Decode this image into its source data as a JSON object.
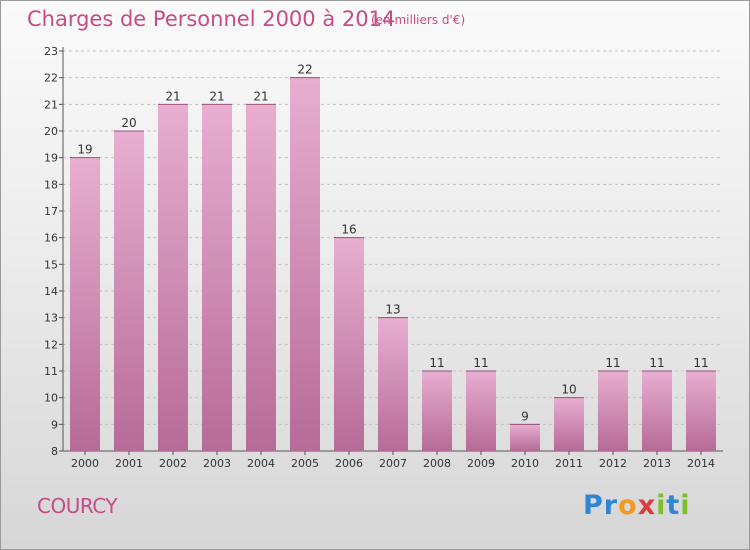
{
  "chart_data": {
    "type": "bar",
    "title": "Charges de Personnel 2000 à 2014",
    "subtitle": "(en milliers d'€)",
    "categories": [
      "2000",
      "2001",
      "2002",
      "2003",
      "2004",
      "2005",
      "2006",
      "2007",
      "2008",
      "2009",
      "2010",
      "2011",
      "2012",
      "2013",
      "2014"
    ],
    "values": [
      19,
      20,
      21,
      21,
      21,
      22,
      16,
      13,
      11,
      11,
      9,
      10,
      11,
      11,
      11
    ],
    "ylim": [
      8,
      23
    ],
    "yticks": [
      8,
      9,
      10,
      11,
      12,
      13,
      14,
      15,
      16,
      17,
      18,
      19,
      20,
      21,
      22,
      23
    ],
    "grid": true,
    "legend": "none",
    "colors": {
      "bar_top": "#e8aed0",
      "bar_bottom": "#b66b98",
      "title": "#c84a86"
    }
  },
  "footer": {
    "commune": "COURCY",
    "logo_text": "Proxiti",
    "logo_letters": [
      {
        "ch": "P",
        "color": "#2e86d6"
      },
      {
        "ch": "r",
        "color": "#2e86d6"
      },
      {
        "ch": "o",
        "color": "#f39a1f"
      },
      {
        "ch": "x",
        "color": "#e03a3a"
      },
      {
        "ch": "i",
        "color": "#7bbf2a"
      },
      {
        "ch": "t",
        "color": "#2e86d6"
      },
      {
        "ch": "i",
        "color": "#7bbf2a"
      }
    ]
  }
}
